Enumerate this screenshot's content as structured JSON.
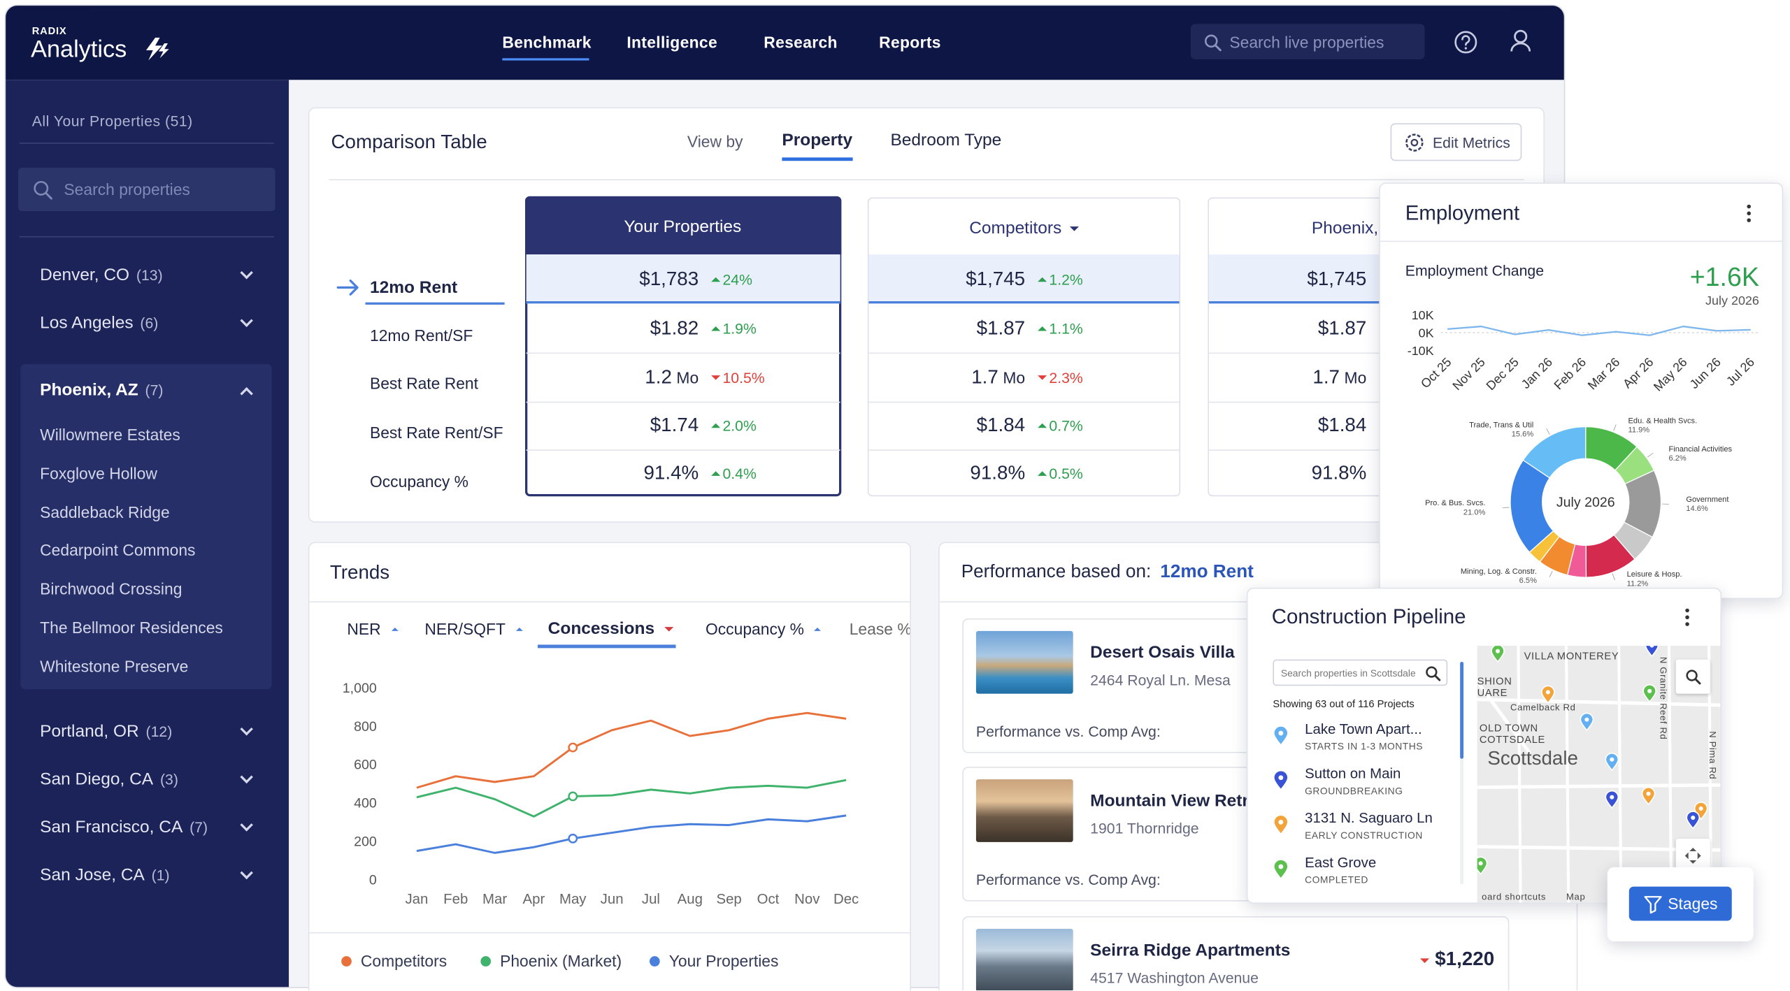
{
  "nav": {
    "brand_top": "RADIX",
    "brand": "Analytics",
    "links": [
      "Benchmark",
      "Intelligence",
      "Research",
      "Reports"
    ],
    "active": 0,
    "search": "Search live properties"
  },
  "sidebar": {
    "all": "All Your Properties (51)",
    "search": "Search properties",
    "markets": [
      {
        "name": "Denver, CO",
        "count": "(13)"
      },
      {
        "name": "Los Angeles",
        "count": "(6)"
      },
      {
        "name": "Phoenix, AZ",
        "count": "(7)",
        "expanded": true,
        "properties": [
          "Willowmere Estates",
          "Foxglove Hollow",
          "Saddleback Ridge",
          "Cedarpoint Commons",
          "Birchwood Crossing",
          "The Bellmoor Residences",
          "Whitestone Preserve"
        ]
      },
      {
        "name": "Portland, OR",
        "count": "(12)"
      },
      {
        "name": "San Diego, CA",
        "count": "(3)"
      },
      {
        "name": "San Francisco, CA",
        "count": "(7)"
      },
      {
        "name": "San Jose, CA",
        "count": "(1)"
      }
    ]
  },
  "comparison": {
    "title": "Comparison Table",
    "view_by": "View by",
    "tabs": [
      "Property",
      "Bedroom Type"
    ],
    "active_tab": 0,
    "edit": "Edit Metrics",
    "metrics": [
      "12mo Rent",
      "12mo Rent/SF",
      "Best Rate Rent",
      "Best Rate Rent/SF",
      "Occupancy %"
    ],
    "active_metric": 0,
    "columns": [
      {
        "name": "Your Properties",
        "highlight": true,
        "cells": [
          {
            "value": "$1,783",
            "change": "24%",
            "dir": "up"
          },
          {
            "value": "$1.82",
            "change": "1.9%",
            "dir": "up"
          },
          {
            "value": "1.2",
            "unit": "Mo",
            "change": "10.5%",
            "dir": "down"
          },
          {
            "value": "$1.74",
            "change": "2.0%",
            "dir": "up"
          },
          {
            "value": "91.4%",
            "change": "0.4%",
            "dir": "up"
          }
        ]
      },
      {
        "name": "Competitors",
        "dropdown": true,
        "cells": [
          {
            "value": "$1,745",
            "change": "1.2%",
            "dir": "up"
          },
          {
            "value": "$1.87",
            "change": "1.1%",
            "dir": "up"
          },
          {
            "value": "1.7",
            "unit": "Mo",
            "change": "2.3%",
            "dir": "down"
          },
          {
            "value": "$1.84",
            "change": "0.7%",
            "dir": "up"
          },
          {
            "value": "91.8%",
            "change": "0.5%",
            "dir": "up"
          }
        ]
      },
      {
        "name": "Phoenix,",
        "cells": [
          {
            "value": "$1,745"
          },
          {
            "value": "$1.87"
          },
          {
            "value": "1.7",
            "unit": "Mo"
          },
          {
            "value": "$1.84"
          },
          {
            "value": "91.8%"
          }
        ]
      }
    ]
  },
  "trends": {
    "title": "Trends",
    "tabs": [
      {
        "name": "NER",
        "dir": "up"
      },
      {
        "name": "NER/SQFT",
        "dir": "up"
      },
      {
        "name": "Concessions",
        "dir": "down"
      },
      {
        "name": "Occupancy %",
        "dir": "up"
      },
      {
        "name": "Lease %"
      }
    ],
    "active_tab": 2
  },
  "performance": {
    "title": "Performance based on:",
    "metric": "12mo Rent",
    "properties": [
      {
        "name": "Desert Osais Villa",
        "address": "2464 Royal Ln. Mesa",
        "vs": "Performance vs. Comp Avg:"
      },
      {
        "name": "Mountain View Retr",
        "address": "1901 Thornridge",
        "vs": "Performance vs. Comp Avg:"
      },
      {
        "name": "Seirra Ridge Apartments",
        "address": "4517 Washington Avenue",
        "price": "$1,220",
        "dir": "down"
      }
    ]
  },
  "employment": {
    "title": "Employment"
  },
  "pipeline": {
    "title": "Construction Pipeline",
    "search": "Search properties in Scottsdale",
    "showing": "Showing 63 out of 116 Projects",
    "projects": [
      {
        "name": "Lake Town Apart...",
        "status": "STARTS IN 1-3 MONTHS",
        "color": "#62b0f2"
      },
      {
        "name": "Sutton on Main",
        "status": "GROUNDBREAKING",
        "color": "#3a52d6"
      },
      {
        "name": "3131 N. Saguaro Ln",
        "status": "EARLY CONSTRUCTION",
        "color": "#f2a43a"
      },
      {
        "name": "East Grove",
        "status": "COMPLETED",
        "color": "#5cbf4e"
      }
    ],
    "map_labels": [
      "VILLA MONTEREY",
      "SHION",
      "UARE",
      "Camelback Rd",
      "OLD TOWN",
      "COTTSDALE",
      "Scottsdale",
      "N Granite Reef Rd",
      "N Pima Rd",
      "oard shortcuts",
      "Map"
    ],
    "stages": "Stages"
  },
  "chart_data": [
    {
      "type": "line",
      "categories": [
        "Jan",
        "Feb",
        "Mar",
        "Apr",
        "May",
        "Jun",
        "Jul",
        "Aug",
        "Sep",
        "Oct",
        "Nov",
        "Dec"
      ],
      "ylim": [
        0,
        1000
      ],
      "yticks": [
        0,
        200,
        400,
        600,
        800,
        {
          "value": 1000,
          "label": "1,000"
        }
      ],
      "grid": false,
      "marker_index": 4,
      "series": [
        {
          "name": "Competitors",
          "color": "#e8703a",
          "values": [
            480,
            540,
            510,
            540,
            690,
            780,
            830,
            750,
            780,
            840,
            870,
            840
          ]
        },
        {
          "name": "Phoenix (Market)",
          "color": "#3fb36b",
          "values": [
            430,
            480,
            420,
            330,
            435,
            440,
            470,
            450,
            480,
            490,
            480,
            520
          ]
        },
        {
          "name": "Your Properties",
          "color": "#4a80dc",
          "values": [
            150,
            185,
            140,
            170,
            215,
            245,
            275,
            290,
            285,
            315,
            305,
            335
          ]
        }
      ]
    },
    {
      "type": "line",
      "title": "Employment Change",
      "annotation": "+1.6K",
      "annotation_sub": "July 2026",
      "categories": [
        "Oct 25",
        "Nov 25",
        "Dec 25",
        "Jan 26",
        "Feb 26",
        "Mar 26",
        "Apr 26",
        "May 26",
        "Jun 26",
        "Jul 26"
      ],
      "ylim": [
        -10000,
        10000
      ],
      "yticks": [
        {
          "value": 10000,
          "label": "10K"
        },
        {
          "value": 0,
          "label": "0K"
        },
        {
          "value": -10000,
          "label": "-10K"
        }
      ],
      "series": [
        {
          "color": "#7db7ee",
          "values": [
            2000,
            3500,
            -1000,
            1500,
            -1500,
            500,
            -1500,
            3500,
            1000,
            1600
          ]
        }
      ]
    },
    {
      "type": "pie",
      "donut": true,
      "title": "July 2026",
      "categories": [
        "Edu. & Health Svcs.",
        "Financial Activities",
        "Government",
        null,
        "Leisure & Hosp.",
        null,
        "Mining, Log. & Constr.",
        null,
        "Pro. & Bus. Svcs.",
        "Trade, Trans & Util"
      ],
      "values": [
        11.9,
        6.2,
        14.6,
        6.0,
        11.2,
        4.0,
        6.5,
        3.0,
        21.0,
        15.6
      ],
      "value_labels": [
        "11.9%",
        "6.2%",
        "14.6%",
        null,
        "11.2%",
        null,
        "6.5%",
        null,
        "21.0%",
        "15.6%"
      ],
      "colors": [
        "#4cb84a",
        "#9be07f",
        "#9a9a9a",
        "#c9c9c9",
        "#d42a4e",
        "#f05a96",
        "#f28a30",
        "#f7c23a",
        "#3b82e6",
        "#66bdf5"
      ]
    }
  ]
}
